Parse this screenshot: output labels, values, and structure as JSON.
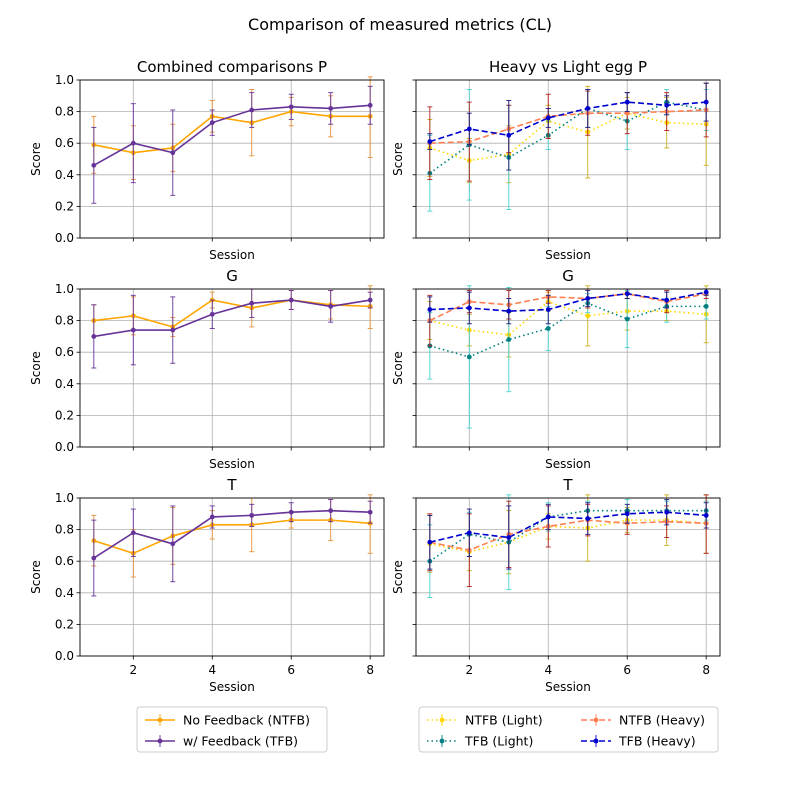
{
  "figure": {
    "title": "Comparison of measured metrics (CL)"
  },
  "legend_left": {
    "entries": [
      {
        "name": "No Feedback (NTFB)",
        "color": "#ffa500",
        "style": "solid"
      },
      {
        "name": "w/ Feedback (TFB)",
        "color": "#663399",
        "style": "solid"
      }
    ]
  },
  "legend_right": {
    "entries": [
      {
        "name": "NTFB (Light)",
        "color": "#ffd700",
        "style": "dotted"
      },
      {
        "name": "TFB (Light)",
        "color": "#008080",
        "style": "dotted"
      },
      {
        "name": "NTFB (Heavy)",
        "color": "#ff7f50",
        "style": "dashed"
      },
      {
        "name": "TFB (Heavy)",
        "color": "#0000cd",
        "style": "dashed"
      }
    ]
  },
  "chart_data": [
    {
      "type": "line",
      "title": "Combined comparisons P",
      "xlabel": "Session",
      "ylabel": "Score",
      "ylim": [
        0,
        1
      ],
      "xticks": [
        2,
        4,
        6,
        8
      ],
      "yticks": [
        0.0,
        0.2,
        0.4,
        0.6,
        0.8,
        1.0
      ],
      "grid": true,
      "x": [
        1,
        2,
        3,
        4,
        5,
        6,
        7,
        8
      ],
      "series": [
        {
          "name": "No Feedback (NTFB)",
          "color": "#ffa500",
          "style": "solid",
          "ecolor": "#e69138",
          "values": [
            0.59,
            0.54,
            0.57,
            0.77,
            0.73,
            0.8,
            0.77,
            0.77
          ],
          "errors": [
            0.18,
            0.17,
            0.15,
            0.1,
            0.21,
            0.09,
            0.13,
            0.26
          ]
        },
        {
          "name": "w/ Feedback (TFB)",
          "color": "#663399",
          "style": "solid",
          "ecolor": "#663399",
          "values": [
            0.46,
            0.6,
            0.54,
            0.73,
            0.81,
            0.83,
            0.82,
            0.84
          ],
          "errors": [
            0.24,
            0.25,
            0.27,
            0.08,
            0.11,
            0.08,
            0.1,
            0.12
          ]
        }
      ]
    },
    {
      "type": "line",
      "title": "Heavy vs Light egg P",
      "xlabel": "Session",
      "ylabel": "Score",
      "ylim": [
        0,
        1
      ],
      "xticks": [
        2,
        4,
        6,
        8
      ],
      "yticks": [
        0.0,
        0.2,
        0.4,
        0.6,
        0.8,
        1.0
      ],
      "grid": true,
      "x": [
        1,
        2,
        3,
        4,
        5,
        6,
        7,
        8
      ],
      "series": [
        {
          "name": "NTFB (Light)",
          "color": "#ffd700",
          "style": "dotted",
          "ecolor": "#c9b01a",
          "values": [
            0.57,
            0.49,
            0.53,
            0.74,
            0.67,
            0.79,
            0.73,
            0.72
          ],
          "errors": [
            0.18,
            0.14,
            0.18,
            0.1,
            0.29,
            0.1,
            0.16,
            0.26
          ]
        },
        {
          "name": "TFB (Light)",
          "color": "#008080",
          "style": "dotted",
          "ecolor": "#48d1cc",
          "values": [
            0.41,
            0.59,
            0.51,
            0.65,
            0.82,
            0.74,
            0.86,
            0.81
          ],
          "errors": [
            0.24,
            0.35,
            0.33,
            0.09,
            0.12,
            0.18,
            0.08,
            0.13
          ]
        },
        {
          "name": "NTFB (Heavy)",
          "color": "#ff7f50",
          "style": "dashed",
          "ecolor": "#b22222",
          "values": [
            0.6,
            0.61,
            0.69,
            0.77,
            0.79,
            0.79,
            0.8,
            0.81
          ],
          "errors": [
            0.23,
            0.25,
            0.15,
            0.14,
            0.14,
            0.13,
            0.12,
            0.17
          ]
        },
        {
          "name": "TFB (Heavy)",
          "color": "#0000cd",
          "style": "dashed",
          "ecolor": "#1a1a80",
          "values": [
            0.61,
            0.69,
            0.65,
            0.76,
            0.82,
            0.86,
            0.84,
            0.86
          ],
          "errors": [
            0.05,
            0.1,
            0.22,
            0.06,
            0.12,
            0.06,
            0.06,
            0.12
          ]
        }
      ]
    },
    {
      "type": "line",
      "title": "G",
      "xlabel": "Session",
      "ylabel": "Score",
      "ylim": [
        0,
        1
      ],
      "xticks": [
        2,
        4,
        6,
        8
      ],
      "yticks": [
        0.0,
        0.2,
        0.4,
        0.6,
        0.8,
        1.0
      ],
      "grid": true,
      "x": [
        1,
        2,
        3,
        4,
        5,
        6,
        7,
        8
      ],
      "series": [
        {
          "name": "No Feedback (NTFB)",
          "color": "#ffa500",
          "style": "solid",
          "ecolor": "#e69138",
          "values": [
            0.8,
            0.83,
            0.76,
            0.93,
            0.88,
            0.93,
            0.9,
            0.89
          ],
          "errors": [
            0.1,
            0.12,
            0.06,
            0.05,
            0.12,
            0.06,
            0.09,
            0.14
          ]
        },
        {
          "name": "w/ Feedback (TFB)",
          "color": "#663399",
          "style": "solid",
          "ecolor": "#663399",
          "values": [
            0.7,
            0.74,
            0.74,
            0.84,
            0.91,
            0.93,
            0.89,
            0.93
          ],
          "errors": [
            0.2,
            0.22,
            0.21,
            0.09,
            0.09,
            0.06,
            0.1,
            0.05
          ]
        }
      ]
    },
    {
      "type": "line",
      "title": "G",
      "xlabel": "Session",
      "ylabel": "Score",
      "ylim": [
        0,
        1
      ],
      "xticks": [
        2,
        4,
        6,
        8
      ],
      "yticks": [
        0.0,
        0.2,
        0.4,
        0.6,
        0.8,
        1.0
      ],
      "grid": true,
      "x": [
        1,
        2,
        3,
        4,
        5,
        6,
        7,
        8
      ],
      "series": [
        {
          "name": "NTFB (Light)",
          "color": "#ffd700",
          "style": "dotted",
          "ecolor": "#c9b01a",
          "values": [
            0.8,
            0.74,
            0.71,
            0.92,
            0.83,
            0.86,
            0.86,
            0.84
          ],
          "errors": [
            0.12,
            0.1,
            0.14,
            0.06,
            0.19,
            0.12,
            0.06,
            0.18
          ]
        },
        {
          "name": "TFB (Light)",
          "color": "#008080",
          "style": "dotted",
          "ecolor": "#48d1cc",
          "values": [
            0.64,
            0.57,
            0.68,
            0.75,
            0.91,
            0.81,
            0.89,
            0.89
          ],
          "errors": [
            0.21,
            0.45,
            0.33,
            0.14,
            0.06,
            0.18,
            0.1,
            0.08
          ]
        },
        {
          "name": "NTFB (Heavy)",
          "color": "#ff7f50",
          "style": "dashed",
          "ecolor": "#b22222",
          "values": [
            0.8,
            0.92,
            0.9,
            0.95,
            0.94,
            0.97,
            0.92,
            0.97
          ],
          "errors": [
            0.16,
            0.07,
            0.09,
            0.04,
            0.06,
            0.03,
            0.07,
            0.03
          ]
        },
        {
          "name": "TFB (Heavy)",
          "color": "#0000cd",
          "style": "dashed",
          "ecolor": "#1a1a80",
          "values": [
            0.87,
            0.88,
            0.86,
            0.87,
            0.94,
            0.97,
            0.93,
            0.98
          ],
          "errors": [
            0.08,
            0.1,
            0.08,
            0.09,
            0.05,
            0.03,
            0.05,
            0.02
          ]
        }
      ]
    },
    {
      "type": "line",
      "title": "T",
      "xlabel": "Session",
      "ylabel": "Score",
      "ylim": [
        0,
        1
      ],
      "xticks": [
        2,
        4,
        6,
        8
      ],
      "yticks": [
        0.0,
        0.2,
        0.4,
        0.6,
        0.8,
        1.0
      ],
      "grid": true,
      "x": [
        1,
        2,
        3,
        4,
        5,
        6,
        7,
        8
      ],
      "series": [
        {
          "name": "No Feedback (NTFB)",
          "color": "#ffa500",
          "style": "solid",
          "ecolor": "#e69138",
          "values": [
            0.73,
            0.65,
            0.76,
            0.83,
            0.83,
            0.86,
            0.86,
            0.84
          ],
          "errors": [
            0.16,
            0.15,
            0.18,
            0.09,
            0.17,
            0.05,
            0.13,
            0.19
          ]
        },
        {
          "name": "w/ Feedback (TFB)",
          "color": "#663399",
          "style": "solid",
          "ecolor": "#663399",
          "values": [
            0.62,
            0.78,
            0.71,
            0.88,
            0.89,
            0.91,
            0.92,
            0.91
          ],
          "errors": [
            0.24,
            0.15,
            0.24,
            0.07,
            0.07,
            0.06,
            0.07,
            0.07
          ]
        }
      ]
    },
    {
      "type": "line",
      "title": "T",
      "xlabel": "Session",
      "ylabel": "Score",
      "ylim": [
        0,
        1
      ],
      "xticks": [
        2,
        4,
        6,
        8
      ],
      "yticks": [
        0.0,
        0.2,
        0.4,
        0.6,
        0.8,
        1.0
      ],
      "grid": true,
      "x": [
        1,
        2,
        3,
        4,
        5,
        6,
        7,
        8
      ],
      "series": [
        {
          "name": "NTFB (Light)",
          "color": "#ffd700",
          "style": "dotted",
          "ecolor": "#c9b01a",
          "values": [
            0.71,
            0.66,
            0.72,
            0.82,
            0.81,
            0.86,
            0.86,
            0.84
          ],
          "errors": [
            0.18,
            0.12,
            0.2,
            0.08,
            0.21,
            0.08,
            0.16,
            0.19
          ]
        },
        {
          "name": "TFB (Light)",
          "color": "#008080",
          "style": "dotted",
          "ecolor": "#48d1cc",
          "values": [
            0.6,
            0.77,
            0.72,
            0.88,
            0.92,
            0.92,
            0.92,
            0.92
          ],
          "errors": [
            0.23,
            0.14,
            0.3,
            0.09,
            0.06,
            0.07,
            0.06,
            0.06
          ]
        },
        {
          "name": "NTFB (Heavy)",
          "color": "#ff7f50",
          "style": "dashed",
          "ecolor": "#b22222",
          "values": [
            0.72,
            0.67,
            0.77,
            0.82,
            0.86,
            0.84,
            0.85,
            0.84
          ],
          "errors": [
            0.18,
            0.23,
            0.21,
            0.13,
            0.1,
            0.07,
            0.1,
            0.19
          ]
        },
        {
          "name": "TFB (Heavy)",
          "color": "#0000cd",
          "style": "dashed",
          "ecolor": "#1a1a80",
          "values": [
            0.72,
            0.78,
            0.75,
            0.88,
            0.87,
            0.9,
            0.91,
            0.89
          ],
          "errors": [
            0.17,
            0.15,
            0.2,
            0.08,
            0.1,
            0.06,
            0.08,
            0.08
          ]
        }
      ]
    }
  ]
}
